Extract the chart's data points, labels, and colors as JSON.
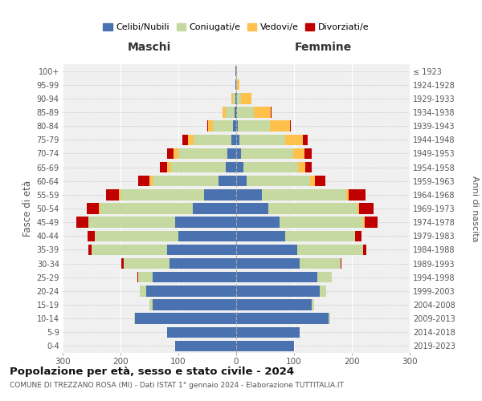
{
  "age_groups": [
    "0-4",
    "5-9",
    "10-14",
    "15-19",
    "20-24",
    "25-29",
    "30-34",
    "35-39",
    "40-44",
    "45-49",
    "50-54",
    "55-59",
    "60-64",
    "65-69",
    "70-74",
    "75-79",
    "80-84",
    "85-89",
    "90-94",
    "95-99",
    "100+"
  ],
  "birth_years": [
    "2019-2023",
    "2014-2018",
    "2009-2013",
    "2004-2008",
    "1999-2003",
    "1994-1998",
    "1989-1993",
    "1984-1988",
    "1979-1983",
    "1974-1978",
    "1969-1973",
    "1964-1968",
    "1959-1963",
    "1954-1958",
    "1949-1953",
    "1944-1948",
    "1939-1943",
    "1934-1938",
    "1929-1933",
    "1924-1928",
    "≤ 1923"
  ],
  "maschi": {
    "celibi": [
      105,
      120,
      175,
      145,
      155,
      145,
      115,
      120,
      100,
      105,
      75,
      55,
      30,
      18,
      15,
      8,
      5,
      3,
      2,
      1,
      1
    ],
    "coniugati": [
      0,
      0,
      2,
      5,
      12,
      25,
      80,
      130,
      145,
      150,
      160,
      145,
      115,
      95,
      85,
      65,
      35,
      15,
      4,
      1,
      0
    ],
    "vedovi": [
      0,
      0,
      0,
      0,
      0,
      0,
      0,
      0,
      0,
      1,
      2,
      3,
      5,
      7,
      8,
      10,
      8,
      5,
      2,
      0,
      0
    ],
    "divorziati": [
      0,
      0,
      0,
      0,
      0,
      1,
      3,
      5,
      12,
      20,
      22,
      22,
      20,
      12,
      12,
      10,
      2,
      1,
      0,
      0,
      0
    ]
  },
  "femmine": {
    "nubili": [
      100,
      110,
      160,
      130,
      145,
      140,
      110,
      105,
      85,
      75,
      55,
      45,
      18,
      12,
      8,
      5,
      3,
      2,
      1,
      0,
      0
    ],
    "coniugate": [
      0,
      0,
      2,
      5,
      10,
      25,
      70,
      115,
      120,
      145,
      155,
      145,
      110,
      95,
      90,
      80,
      55,
      28,
      8,
      2,
      0
    ],
    "vedove": [
      0,
      0,
      0,
      0,
      0,
      0,
      0,
      0,
      1,
      2,
      3,
      5,
      8,
      12,
      20,
      30,
      35,
      30,
      18,
      3,
      1
    ],
    "divorziate": [
      0,
      0,
      0,
      0,
      0,
      0,
      2,
      5,
      10,
      22,
      25,
      28,
      18,
      12,
      12,
      8,
      2,
      1,
      0,
      0,
      0
    ]
  },
  "colors": {
    "celibi": "#4a72b0",
    "coniugati": "#c5d9a0",
    "vedovi": "#ffc04c",
    "divorziati": "#c00000"
  },
  "title": "Popolazione per età, sesso e stato civile - 2024",
  "subtitle": "COMUNE DI TREZZANO ROSA (MI) - Dati ISTAT 1° gennaio 2024 - Elaborazione TUTTITALIA.IT",
  "xlabel_left": "Maschi",
  "xlabel_right": "Femmine",
  "ylabel_left": "Fasce di età",
  "ylabel_right": "Anni di nascita",
  "xlim": 300,
  "legend_labels": [
    "Celibi/Nubili",
    "Coniugati/e",
    "Vedovi/e",
    "Divorziati/e"
  ],
  "bg_color": "#f0f0f0",
  "fig_bg": "#ffffff"
}
